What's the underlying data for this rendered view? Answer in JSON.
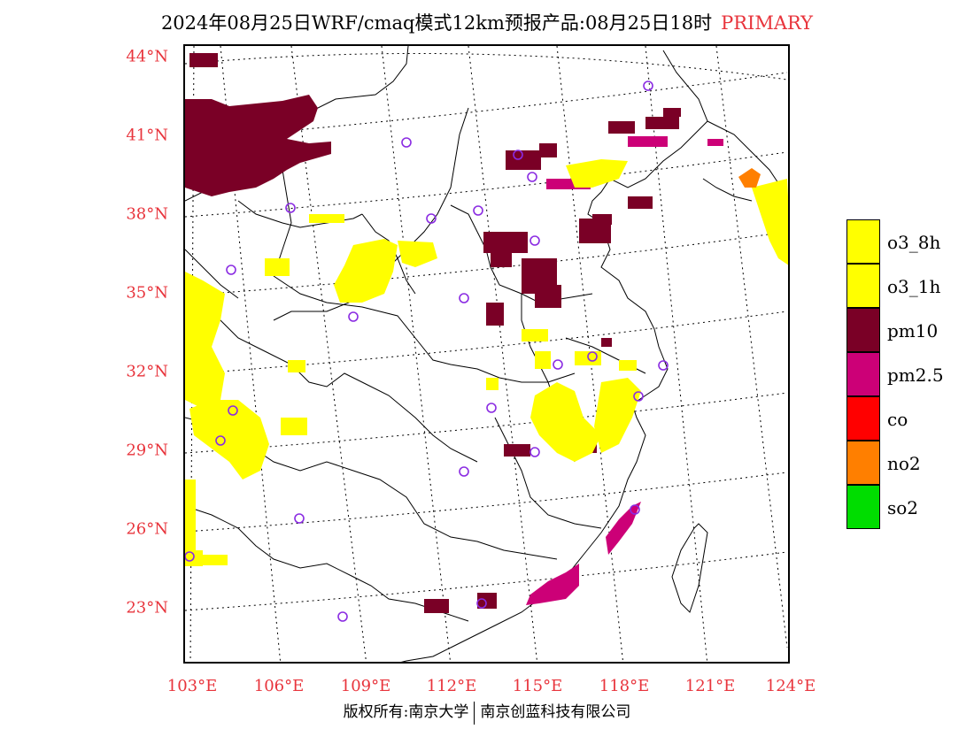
{
  "title": {
    "main": "2024年08月25日WRF/cmaq模式12km预报产品:08月25日18时",
    "product": "PRIMARY"
  },
  "colors": {
    "label_red": "#e8343c",
    "o3_8h": "#ffff00",
    "o3_1h": "#ffff00",
    "pm10": "#7a0026",
    "pm25": "#cc0077",
    "co": "#ff0000",
    "no2": "#ff7f00",
    "so2": "#00dd00",
    "station": "#8a2be2"
  },
  "axes": {
    "lat_labels": [
      "44°N",
      "41°N",
      "38°N",
      "35°N",
      "32°N",
      "29°N",
      "26°N",
      "23°N"
    ],
    "lon_labels": [
      "103°E",
      "106°E",
      "109°E",
      "112°E",
      "115°E",
      "118°E",
      "121°E",
      "124°E"
    ]
  },
  "legend": [
    {
      "label": "o3_8h",
      "color": "#ffff00"
    },
    {
      "label": "o3_1h",
      "color": "#ffff00"
    },
    {
      "label": "pm10",
      "color": "#7a0026"
    },
    {
      "label": "pm2.5",
      "color": "#cc0077"
    },
    {
      "label": "co",
      "color": "#ff0000"
    },
    {
      "label": "no2",
      "color": "#ff7f00"
    },
    {
      "label": "so2",
      "color": "#00dd00"
    }
  ],
  "copyright": {
    "left": "版权所有:南京大学",
    "right": "南京创蓝科技有限公司"
  }
}
